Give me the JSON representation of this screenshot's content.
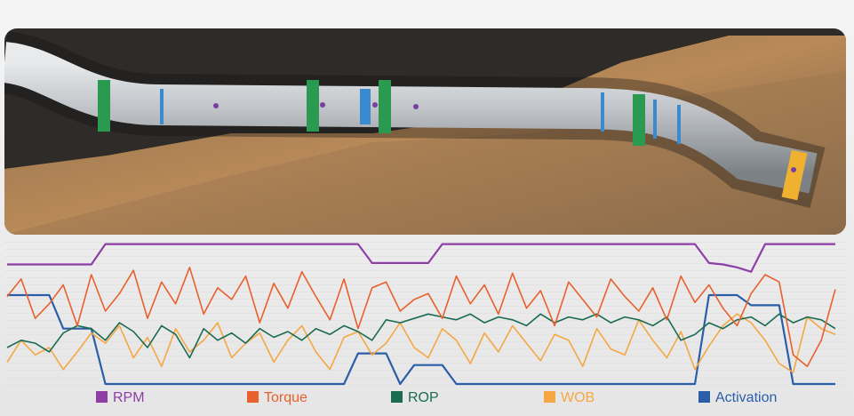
{
  "chart_data": {
    "type": "line",
    "ylim": [
      0,
      100
    ],
    "series": [
      {
        "name": "RPM",
        "color": "#8e3fa6",
        "values": [
          82,
          82,
          82,
          82,
          82,
          82,
          82,
          96,
          96,
          96,
          96,
          96,
          96,
          96,
          96,
          96,
          96,
          96,
          96,
          96,
          96,
          96,
          96,
          96,
          96,
          96,
          83,
          83,
          83,
          83,
          83,
          96,
          96,
          96,
          96,
          96,
          96,
          96,
          96,
          96,
          96,
          96,
          96,
          96,
          96,
          96,
          96,
          96,
          96,
          96,
          83,
          82,
          80,
          77,
          96,
          96,
          96,
          96,
          96,
          96
        ]
      },
      {
        "name": "Torque",
        "color": "#e8602c",
        "values": [
          60,
          72,
          45,
          55,
          68,
          40,
          75,
          50,
          62,
          78,
          45,
          70,
          55,
          80,
          48,
          66,
          58,
          74,
          42,
          69,
          52,
          77,
          60,
          44,
          72,
          38,
          66,
          70,
          50,
          58,
          62,
          45,
          74,
          55,
          68,
          48,
          76,
          52,
          64,
          40,
          70,
          58,
          46,
          72,
          60,
          50,
          66,
          44,
          74,
          56,
          68,
          52,
          40,
          62,
          75,
          70,
          20,
          12,
          30,
          65
        ]
      },
      {
        "name": "ROP",
        "color": "#1b6b52",
        "values": [
          25,
          30,
          28,
          22,
          35,
          40,
          38,
          30,
          42,
          36,
          25,
          40,
          34,
          18,
          38,
          30,
          35,
          28,
          38,
          32,
          36,
          30,
          38,
          34,
          40,
          36,
          30,
          44,
          42,
          45,
          48,
          46,
          44,
          48,
          42,
          46,
          44,
          40,
          48,
          42,
          46,
          44,
          48,
          42,
          46,
          44,
          40,
          46,
          30,
          34,
          42,
          38,
          44,
          46,
          40,
          48,
          42,
          46,
          44,
          38
        ]
      },
      {
        "name": "WOB",
        "color": "#f5a742",
        "values": [
          15,
          30,
          20,
          25,
          10,
          22,
          35,
          28,
          40,
          18,
          32,
          12,
          38,
          22,
          30,
          42,
          18,
          28,
          35,
          15,
          30,
          40,
          22,
          10,
          32,
          36,
          20,
          28,
          42,
          25,
          18,
          38,
          30,
          14,
          35,
          22,
          40,
          28,
          16,
          34,
          30,
          12,
          38,
          24,
          20,
          44,
          30,
          18,
          36,
          10,
          26,
          40,
          48,
          42,
          30,
          14,
          8,
          46,
          38,
          34
        ]
      },
      {
        "name": "Activation",
        "color": "#2a5ea8",
        "values": [
          61,
          61,
          61,
          61,
          38,
          38,
          38,
          0,
          0,
          0,
          0,
          0,
          0,
          0,
          0,
          0,
          0,
          0,
          0,
          0,
          0,
          0,
          0,
          0,
          0,
          21,
          21,
          21,
          0,
          13,
          13,
          13,
          0,
          0,
          0,
          0,
          0,
          0,
          0,
          0,
          0,
          0,
          0,
          0,
          0,
          0,
          0,
          0,
          0,
          0,
          61,
          61,
          61,
          54,
          54,
          54,
          0,
          0,
          0,
          0
        ]
      }
    ]
  }
}
